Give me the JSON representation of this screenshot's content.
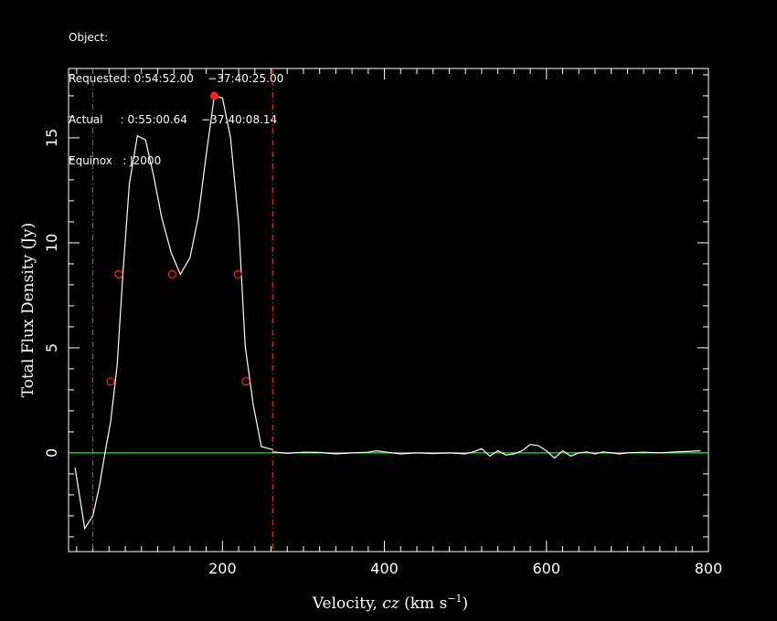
{
  "header": {
    "object": "Object:",
    "requested": "Requested: 0:54:52.00    −37:40:25.00",
    "actual": "Actual     : 0:55:00.64    −37:40:08.14",
    "equinox": "Equinox   : J2000"
  },
  "chart_data": {
    "type": "line",
    "xlabel": "Velocity, cz (km s⁻¹)",
    "xlabel_parts": {
      "pre": "Velocity, ",
      "italic": "cz",
      "post": " (km s",
      "sup": "−1",
      "close": ")"
    },
    "ylabel": "Total Flux Density (Jy)",
    "xlim": [
      10,
      800
    ],
    "ylim": [
      -4.7,
      18.3
    ],
    "xticks": [
      200,
      400,
      600,
      800
    ],
    "yticks": [
      0,
      5,
      10,
      15
    ],
    "x_minor_step": 20,
    "y_minor_step": 1,
    "colors": {
      "spectrum": "#ffffff",
      "baseline": "#00ff00",
      "bounds": "#ff3030",
      "markers": "#ff2020",
      "axes": "#ffffff"
    },
    "series": [
      {
        "role": "spectrum",
        "x": [
          18,
          30,
          40,
          48,
          55,
          62,
          70,
          77,
          85,
          95,
          105,
          115,
          125,
          137,
          148,
          160,
          170,
          180,
          190,
          200,
          210,
          220,
          228,
          238,
          248,
          258,
          262
        ],
        "y": [
          -0.7,
          -3.6,
          -3.0,
          -1.6,
          0.0,
          1.5,
          4.2,
          8.5,
          12.8,
          15.1,
          14.9,
          13.2,
          11.2,
          9.5,
          8.5,
          9.3,
          11.2,
          14.2,
          17.0,
          16.9,
          15.0,
          10.9,
          5.1,
          2.3,
          0.3,
          0.2,
          0.15
        ]
      },
      {
        "role": "residual",
        "x": [
          262,
          280,
          300,
          320,
          340,
          360,
          380,
          390,
          400,
          420,
          440,
          460,
          480,
          500,
          510,
          520,
          530,
          540,
          550,
          560,
          570,
          580,
          590,
          600,
          610,
          620,
          630,
          640,
          650,
          660,
          670,
          680,
          690,
          700,
          720,
          740,
          760,
          780,
          790
        ],
        "y": [
          0.05,
          -0.02,
          0.03,
          0.02,
          -0.05,
          0.0,
          0.03,
          0.1,
          0.05,
          -0.05,
          0.0,
          -0.03,
          0.0,
          -0.05,
          0.05,
          0.2,
          -0.15,
          0.1,
          -0.1,
          -0.05,
          0.1,
          0.4,
          0.35,
          0.1,
          -0.25,
          0.1,
          -0.15,
          0.0,
          0.05,
          -0.05,
          0.05,
          0.0,
          -0.05,
          0.0,
          0.03,
          0.0,
          0.05,
          0.08,
          0.1
        ]
      }
    ],
    "baseline_y": 0,
    "bounds_x": [
      40,
      262
    ],
    "peak_point": {
      "x": 190,
      "y": 17.0
    },
    "open_markers": [
      {
        "x": 62,
        "y": 3.4
      },
      {
        "x": 72,
        "y": 8.5
      },
      {
        "x": 138,
        "y": 8.5
      },
      {
        "x": 219,
        "y": 8.5
      },
      {
        "x": 229,
        "y": 3.4
      }
    ]
  }
}
